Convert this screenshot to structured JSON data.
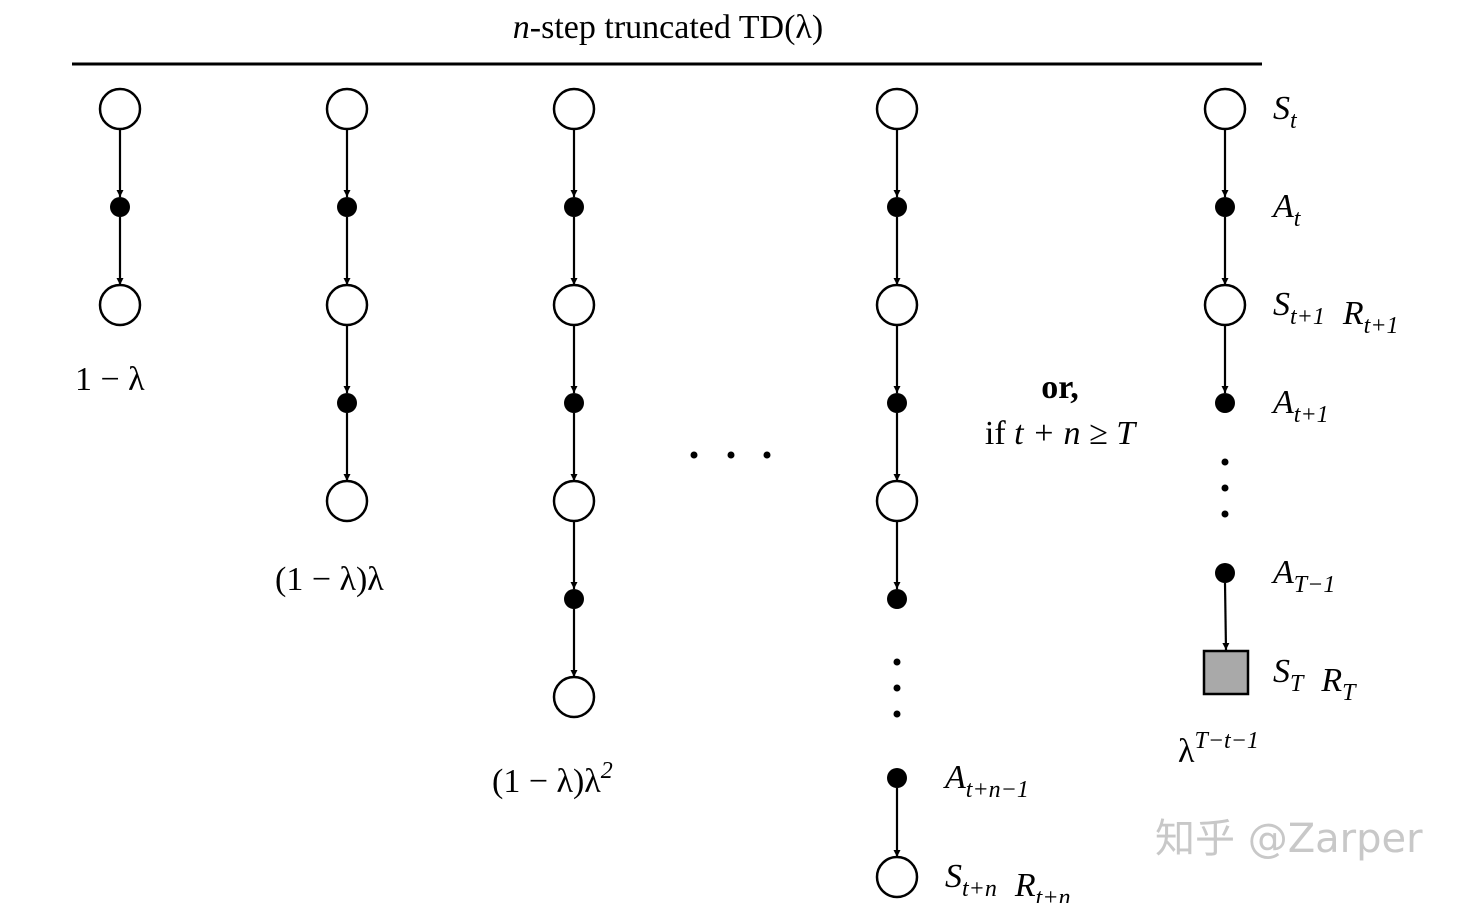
{
  "header": {
    "title_var": "n",
    "title_rest": "-step truncated TD(λ)"
  },
  "weights": [
    {
      "base": "1 − λ"
    },
    {
      "base": "(1 − λ)λ"
    },
    {
      "base": "(1 − λ)λ",
      "sup": "2"
    },
    {
      "base": "λ",
      "sup": "T−t−1"
    }
  ],
  "condition": {
    "or": "or,",
    "if": "if",
    "expr": "t + n ≥ T"
  },
  "column_n_labels": [
    [
      {
        "base": "A",
        "sub": "t+n−1"
      }
    ],
    [
      {
        "base": "S",
        "sub": "t+n"
      },
      {
        "base": "R",
        "sub": "t+n"
      }
    ]
  ],
  "episode_labels": [
    [
      {
        "base": "S",
        "sub": "t"
      }
    ],
    [
      {
        "base": "A",
        "sub": "t"
      }
    ],
    [
      {
        "base": "S",
        "sub": "t+1"
      },
      {
        "base": "R",
        "sub": "t+1"
      }
    ],
    [
      {
        "base": "A",
        "sub": "t+1"
      }
    ],
    [
      {
        "base": "A",
        "sub": "T−1"
      }
    ],
    [
      {
        "base": "S",
        "sub": "T"
      },
      {
        "base": "R",
        "sub": "T"
      }
    ]
  ],
  "watermark": "知乎 @Zarper"
}
